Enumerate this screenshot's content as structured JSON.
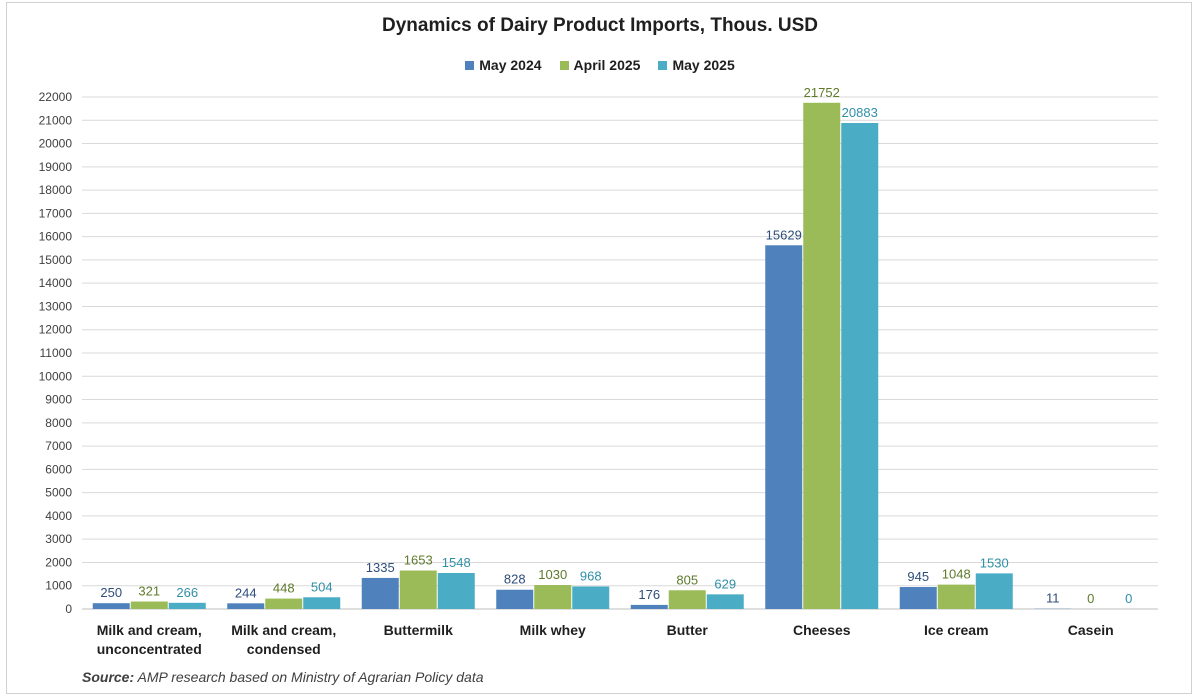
{
  "title": "Dynamics of Dairy Product Imports, Thous. USD",
  "source": {
    "prefix": "Source:",
    "text": " AMP research based on Ministry of Agrarian Policy data"
  },
  "chart_data": {
    "type": "bar",
    "title": "Dynamics of Dairy Product Imports, Thous. USD",
    "xlabel": "",
    "ylabel": "",
    "ylim": [
      0,
      22000
    ],
    "ytick_step": 1000,
    "grid": true,
    "legend_position": "top-center",
    "categories": [
      [
        "Milk and cream,",
        "unconcentrated"
      ],
      [
        "Milk and cream,",
        "condensed"
      ],
      [
        "Buttermilk"
      ],
      [
        "Milk whey"
      ],
      [
        "Butter"
      ],
      [
        "Cheeses"
      ],
      [
        "Ice cream"
      ],
      [
        "Casein"
      ]
    ],
    "series": [
      {
        "name": "May 2024",
        "color": "#4f81bd",
        "label_color": "#2e4d7b",
        "values": [
          250,
          244,
          1335,
          828,
          176,
          15629,
          945,
          11
        ]
      },
      {
        "name": "April 2025",
        "color": "#9bbb59",
        "label_color": "#5e7a2a",
        "values": [
          321,
          448,
          1653,
          1030,
          805,
          21752,
          1048,
          0
        ]
      },
      {
        "name": "May 2025",
        "color": "#4bacc6",
        "label_color": "#2f8fa8",
        "values": [
          266,
          504,
          1548,
          968,
          629,
          20883,
          1530,
          0
        ]
      }
    ]
  }
}
